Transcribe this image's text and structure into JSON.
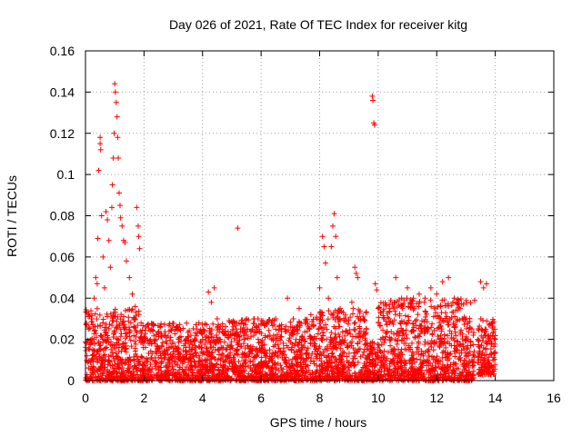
{
  "chart_data": {
    "type": "scatter",
    "title": "Day 026 of 2021, Rate Of TEC Index for receiver kitg",
    "xlabel": "GPS time / hours",
    "ylabel": "ROTI / TECUs",
    "xlim": [
      0,
      16
    ],
    "ylim": [
      0,
      0.16
    ],
    "xticks": [
      0,
      2,
      4,
      6,
      8,
      10,
      12,
      14,
      16
    ],
    "yticks": [
      0,
      0.02,
      0.04,
      0.06,
      0.08,
      0.1,
      0.12,
      0.14,
      0.16
    ],
    "xtick_labels": [
      "0",
      "2",
      "4",
      "6",
      "8",
      "10",
      "12",
      "14",
      "16"
    ],
    "ytick_labels": [
      "0",
      "0.02",
      "0.04",
      "0.06",
      "0.08",
      "0.1",
      "0.12",
      "0.14",
      "0.16"
    ],
    "grid": true,
    "marker": "+",
    "color": "#ff0000",
    "series": [
      {
        "name": "ROTI",
        "points": [
          [
            0.05,
            0.012
          ],
          [
            0.1,
            0.025
          ],
          [
            0.15,
            0.018
          ],
          [
            0.2,
            0.03
          ],
          [
            0.25,
            0.015
          ],
          [
            0.3,
            0.04
          ],
          [
            0.35,
            0.05
          ],
          [
            0.4,
            0.047
          ],
          [
            0.42,
            0.069
          ],
          [
            0.45,
            0.102
          ],
          [
            0.5,
            0.118
          ],
          [
            0.5,
            0.115
          ],
          [
            0.52,
            0.112
          ],
          [
            0.55,
            0.08
          ],
          [
            0.6,
            0.06
          ],
          [
            0.65,
            0.045
          ],
          [
            0.7,
            0.082
          ],
          [
            0.75,
            0.078
          ],
          [
            0.8,
            0.068
          ],
          [
            0.85,
            0.055
          ],
          [
            0.9,
            0.084
          ],
          [
            0.92,
            0.095
          ],
          [
            0.95,
            0.108
          ],
          [
            0.98,
            0.12
          ],
          [
            1.0,
            0.144
          ],
          [
            1.02,
            0.14
          ],
          [
            1.05,
            0.135
          ],
          [
            1.08,
            0.128
          ],
          [
            1.1,
            0.118
          ],
          [
            1.12,
            0.108
          ],
          [
            1.15,
            0.091
          ],
          [
            1.18,
            0.085
          ],
          [
            1.2,
            0.079
          ],
          [
            1.25,
            0.075
          ],
          [
            1.3,
            0.068
          ],
          [
            1.35,
            0.067
          ],
          [
            1.4,
            0.058
          ],
          [
            1.5,
            0.05
          ],
          [
            1.6,
            0.042
          ],
          [
            1.7,
            0.036
          ],
          [
            1.75,
            0.084
          ],
          [
            1.8,
            0.075
          ],
          [
            1.82,
            0.07
          ],
          [
            1.85,
            0.064
          ],
          [
            1.9,
            0.028
          ],
          [
            2.0,
            0.02
          ],
          [
            2.2,
            0.018
          ],
          [
            2.4,
            0.02
          ],
          [
            2.6,
            0.022
          ],
          [
            2.8,
            0.015
          ],
          [
            3.0,
            0.014
          ],
          [
            3.2,
            0.02
          ],
          [
            3.4,
            0.018
          ],
          [
            3.6,
            0.022
          ],
          [
            3.8,
            0.025
          ],
          [
            4.0,
            0.02
          ],
          [
            4.2,
            0.043
          ],
          [
            4.3,
            0.038
          ],
          [
            4.4,
            0.045
          ],
          [
            4.5,
            0.03
          ],
          [
            4.6,
            0.02
          ],
          [
            4.8,
            0.015
          ],
          [
            5.0,
            0.022
          ],
          [
            5.2,
            0.074
          ],
          [
            5.3,
            0.025
          ],
          [
            5.5,
            0.03
          ],
          [
            5.7,
            0.025
          ],
          [
            5.9,
            0.02
          ],
          [
            6.1,
            0.028
          ],
          [
            6.3,
            0.022
          ],
          [
            6.5,
            0.03
          ],
          [
            6.7,
            0.025
          ],
          [
            6.9,
            0.04
          ],
          [
            7.1,
            0.03
          ],
          [
            7.3,
            0.035
          ],
          [
            7.5,
            0.028
          ],
          [
            7.7,
            0.032
          ],
          [
            7.9,
            0.03
          ],
          [
            8.0,
            0.045
          ],
          [
            8.1,
            0.07
          ],
          [
            8.15,
            0.065
          ],
          [
            8.2,
            0.057
          ],
          [
            8.3,
            0.04
          ],
          [
            8.4,
            0.065
          ],
          [
            8.45,
            0.075
          ],
          [
            8.5,
            0.081
          ],
          [
            8.55,
            0.07
          ],
          [
            8.6,
            0.05
          ],
          [
            8.7,
            0.035
          ],
          [
            8.9,
            0.03
          ],
          [
            9.1,
            0.038
          ],
          [
            9.2,
            0.055
          ],
          [
            9.25,
            0.052
          ],
          [
            9.3,
            0.05
          ],
          [
            9.4,
            0.03
          ],
          [
            9.6,
            0.025
          ],
          [
            9.8,
            0.138
          ],
          [
            9.82,
            0.136
          ],
          [
            9.85,
            0.125
          ],
          [
            9.88,
            0.124
          ],
          [
            9.9,
            0.047
          ],
          [
            9.95,
            0.044
          ],
          [
            10.0,
            0.035
          ],
          [
            10.2,
            0.03
          ],
          [
            10.4,
            0.035
          ],
          [
            10.6,
            0.05
          ],
          [
            10.8,
            0.04
          ],
          [
            11.0,
            0.045
          ],
          [
            11.2,
            0.04
          ],
          [
            11.4,
            0.042
          ],
          [
            11.6,
            0.04
          ],
          [
            11.8,
            0.045
          ],
          [
            12.0,
            0.042
          ],
          [
            12.2,
            0.048
          ],
          [
            12.4,
            0.05
          ],
          [
            12.6,
            0.04
          ],
          [
            12.8,
            0.035
          ],
          [
            13.0,
            0.03
          ],
          [
            13.2,
            0.025
          ],
          [
            13.4,
            0.02
          ],
          [
            13.5,
            0.048
          ],
          [
            13.6,
            0.045
          ],
          [
            13.7,
            0.047
          ],
          [
            13.8,
            0.02
          ],
          [
            13.9,
            0.028
          ],
          [
            14.0,
            0.02
          ]
        ]
      }
    ],
    "dense_band": {
      "note": "dense cloud of ROTI values between 0 and about 0.035 TECUs across the observed time range",
      "segments": [
        {
          "x_from": 0.0,
          "x_to": 1.9,
          "y_from": 0.0,
          "y_to": 0.035
        },
        {
          "x_from": 1.9,
          "x_to": 4.8,
          "y_from": 0.0,
          "y_to": 0.028
        },
        {
          "x_from": 4.8,
          "x_to": 7.8,
          "y_from": 0.0,
          "y_to": 0.03
        },
        {
          "x_from": 7.8,
          "x_to": 9.6,
          "y_from": 0.0,
          "y_to": 0.035
        },
        {
          "x_from": 9.6,
          "x_to": 10.0,
          "y_from": 0.0,
          "y_to": 0.02
        },
        {
          "x_from": 10.0,
          "x_to": 13.3,
          "y_from": 0.0,
          "y_to": 0.04
        },
        {
          "x_from": 13.4,
          "x_to": 14.0,
          "y_from": 0.003,
          "y_to": 0.03
        }
      ]
    }
  }
}
